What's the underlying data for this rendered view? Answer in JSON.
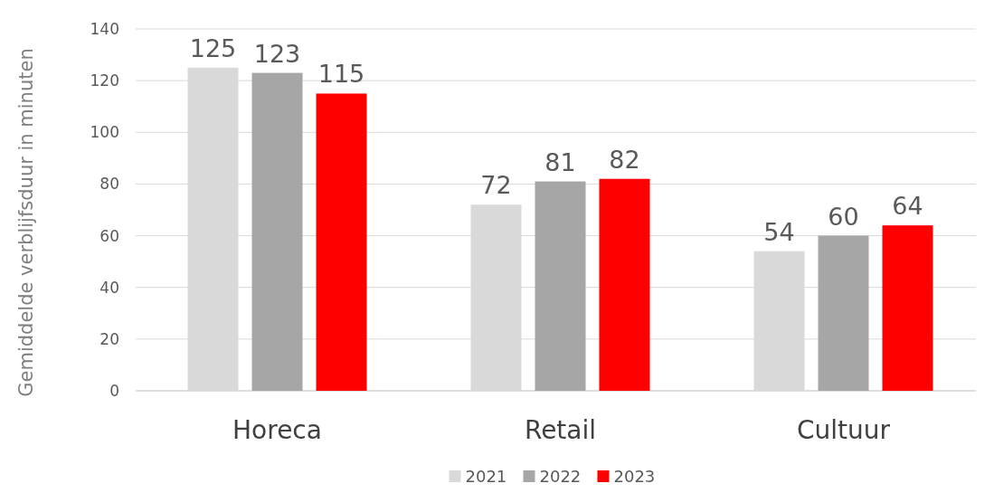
{
  "chart_data": {
    "type": "bar",
    "ylabel": "Gemiddelde verblijfsduur in minuten",
    "categories": [
      "Horeca",
      "Retail",
      "Cultuur"
    ],
    "series": [
      {
        "name": "2021",
        "color": "#d9d9d9",
        "values": [
          125,
          72,
          54
        ]
      },
      {
        "name": "2022",
        "color": "#a6a6a6",
        "values": [
          123,
          81,
          60
        ]
      },
      {
        "name": "2023",
        "color": "#ff0000",
        "values": [
          115,
          82,
          64
        ]
      }
    ],
    "ylim": [
      0,
      140
    ],
    "yticks": [
      0,
      20,
      40,
      60,
      80,
      100,
      120,
      140
    ],
    "grid": "y",
    "legend": "bottom",
    "data_labels": true
  }
}
